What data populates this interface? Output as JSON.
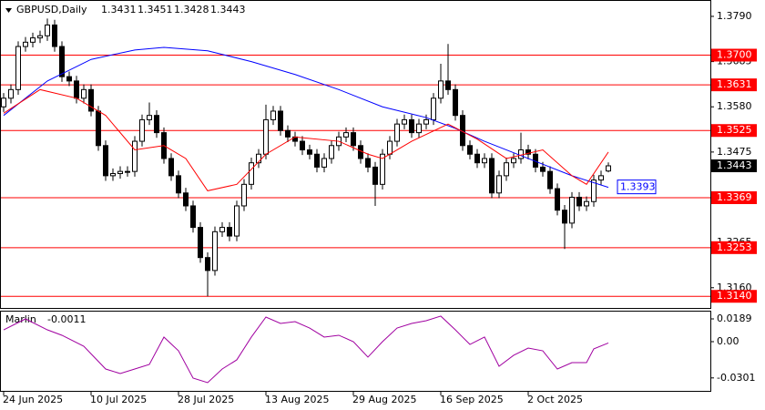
{
  "chart_data": [
    {
      "type": "candlestick",
      "title": "GBPUSD,Daily",
      "categories": [
        "24 Jun 2025",
        null,
        null,
        null,
        null,
        null,
        null,
        null,
        null,
        null,
        null,
        null,
        "10 Jul 2025",
        null,
        null,
        null,
        null,
        null,
        null,
        null,
        null,
        null,
        null,
        null,
        "28 Jul 2025",
        null,
        null,
        null,
        null,
        null,
        null,
        null,
        null,
        null,
        null,
        null,
        "13 Aug 2025",
        null,
        null,
        null,
        null,
        null,
        null,
        null,
        null,
        null,
        null,
        null,
        "29 Aug 2025",
        null,
        null,
        null,
        null,
        null,
        null,
        null,
        null,
        null,
        null,
        null,
        "16 Sep 2025",
        null,
        null,
        null,
        null,
        null,
        null,
        null,
        null,
        null,
        null,
        null,
        "2 Oct 2025",
        null,
        null,
        null,
        null,
        null,
        null,
        null,
        null,
        null,
        null,
        null
      ],
      "open": [
        1.358,
        1.36,
        1.362,
        1.372,
        1.373,
        1.374,
        1.3745,
        1.377,
        1.372,
        1.365,
        1.364,
        1.36,
        1.362,
        1.357,
        1.349,
        1.342,
        1.3425,
        1.343,
        1.343,
        1.35,
        1.355,
        1.356,
        1.352,
        1.346,
        1.342,
        1.338,
        1.335,
        1.33,
        1.323,
        1.32,
        1.329,
        1.33,
        1.328,
        1.335,
        1.34,
        1.345,
        1.347,
        1.355,
        1.357,
        1.3525,
        1.351,
        1.35,
        1.348,
        1.347,
        1.344,
        1.346,
        1.349,
        1.351,
        1.352,
        1.349,
        1.346,
        1.344,
        1.34,
        1.347,
        1.35,
        1.354,
        1.355,
        1.352,
        1.354,
        1.355,
        1.36,
        1.364,
        1.362,
        1.356,
        1.349,
        1.347,
        1.345,
        1.346,
        1.338,
        1.342,
        1.345,
        1.346,
        1.348,
        1.347,
        1.344,
        1.343,
        1.339,
        1.334,
        1.331,
        1.337,
        1.335,
        1.336,
        1.341,
        1.3431
      ],
      "high": [
        1.3612,
        1.3632,
        1.3732,
        1.3742,
        1.3752,
        1.3757,
        1.3785,
        1.3782,
        1.3732,
        1.3662,
        1.3652,
        1.3632,
        1.3632,
        1.3582,
        1.3502,
        1.3437,
        1.3442,
        1.3442,
        1.3512,
        1.3562,
        1.359,
        1.3572,
        1.3532,
        1.3472,
        1.3432,
        1.3392,
        1.3362,
        1.3312,
        1.3242,
        1.3302,
        1.3312,
        1.3312,
        1.3362,
        1.3412,
        1.3462,
        1.3482,
        1.3585,
        1.3582,
        1.3582,
        1.3537,
        1.3522,
        1.3512,
        1.3492,
        1.3482,
        1.3472,
        1.3502,
        1.3522,
        1.3532,
        1.3532,
        1.3502,
        1.3472,
        1.3452,
        1.3482,
        1.3512,
        1.3552,
        1.3562,
        1.3562,
        1.3552,
        1.3562,
        1.3612,
        1.368,
        1.3726,
        1.3632,
        1.3572,
        1.3502,
        1.3482,
        1.3472,
        1.3472,
        1.3432,
        1.3462,
        1.3472,
        1.352,
        1.3492,
        1.3482,
        1.3452,
        1.3442,
        1.3402,
        1.3352,
        1.3382,
        1.3382,
        1.3372,
        1.3422,
        1.3432,
        1.3451
      ],
      "low": [
        1.3568,
        1.3588,
        1.3608,
        1.3708,
        1.3718,
        1.3728,
        1.3733,
        1.3708,
        1.3638,
        1.3628,
        1.3588,
        1.3588,
        1.3558,
        1.3478,
        1.3408,
        1.3408,
        1.3413,
        1.3418,
        1.3418,
        1.3488,
        1.3538,
        1.3508,
        1.3448,
        1.3408,
        1.3368,
        1.3338,
        1.3288,
        1.3218,
        1.314,
        1.3188,
        1.3278,
        1.3268,
        1.3268,
        1.3338,
        1.3388,
        1.3438,
        1.3458,
        1.3538,
        1.3513,
        1.3498,
        1.3488,
        1.3468,
        1.3458,
        1.3428,
        1.3428,
        1.3448,
        1.3478,
        1.3498,
        1.3478,
        1.3448,
        1.3428,
        1.335,
        1.3388,
        1.3458,
        1.3488,
        1.3528,
        1.3508,
        1.3508,
        1.3528,
        1.3538,
        1.3588,
        1.3608,
        1.3548,
        1.3478,
        1.3458,
        1.3438,
        1.3438,
        1.3368,
        1.3368,
        1.3408,
        1.3438,
        1.3448,
        1.3458,
        1.3428,
        1.3418,
        1.3378,
        1.3328,
        1.325,
        1.3298,
        1.3338,
        1.3338,
        1.3348,
        1.3398,
        1.3428
      ],
      "close": [
        1.36,
        1.362,
        1.372,
        1.373,
        1.374,
        1.3745,
        1.377,
        1.372,
        1.365,
        1.364,
        1.36,
        1.362,
        1.357,
        1.349,
        1.342,
        1.3425,
        1.343,
        1.343,
        1.35,
        1.355,
        1.356,
        1.352,
        1.346,
        1.342,
        1.338,
        1.335,
        1.33,
        1.323,
        1.32,
        1.329,
        1.33,
        1.328,
        1.335,
        1.34,
        1.345,
        1.347,
        1.355,
        1.357,
        1.3525,
        1.351,
        1.35,
        1.348,
        1.347,
        1.344,
        1.346,
        1.349,
        1.351,
        1.352,
        1.349,
        1.346,
        1.344,
        1.34,
        1.347,
        1.35,
        1.354,
        1.355,
        1.352,
        1.354,
        1.355,
        1.36,
        1.364,
        1.362,
        1.356,
        1.349,
        1.347,
        1.345,
        1.346,
        1.338,
        1.342,
        1.345,
        1.346,
        1.348,
        1.347,
        1.344,
        1.343,
        1.339,
        1.334,
        1.331,
        1.337,
        1.335,
        1.336,
        1.341,
        1.342,
        1.3443
      ],
      "up_color": "#ffffff",
      "down_color": "#000000",
      "ylim": [
        1.3113,
        1.3828
      ],
      "yticks": [
        {
          "value": 1.379,
          "label": "1.3790"
        },
        1.3685,
        {
          "value": 1.358,
          "label": "1.3580"
        },
        1.3475,
        1.3265,
        {
          "value": 1.316,
          "label": "1.3160"
        }
      ],
      "levels": [
        {
          "value": 1.37,
          "label": "1.3700"
        },
        1.3631,
        1.3525,
        1.3369,
        1.3253,
        {
          "value": 1.314,
          "label": "1.3140"
        }
      ],
      "level_color": "#ff0000",
      "series": [
        {
          "color": "#0000ff",
          "x": [
            0,
            6,
            12,
            18,
            22,
            28,
            34,
            40,
            46,
            52,
            58,
            62,
            66,
            72,
            78,
            83
          ],
          "values": [
            1.356,
            1.364,
            1.369,
            1.3712,
            1.3718,
            1.371,
            1.3685,
            1.3655,
            1.362,
            1.358,
            1.3555,
            1.353,
            1.35,
            1.346,
            1.342,
            1.3393
          ]
        },
        {
          "color": "#ff0000",
          "x": [
            0,
            5,
            10,
            14,
            18,
            22,
            25,
            28,
            32,
            36,
            40,
            46,
            50,
            52,
            56,
            61,
            65,
            69,
            74,
            78,
            80,
            83
          ],
          "values": [
            1.3565,
            1.362,
            1.36,
            1.356,
            1.348,
            1.349,
            1.346,
            1.3385,
            1.34,
            1.347,
            1.351,
            1.35,
            1.347,
            1.346,
            1.35,
            1.354,
            1.3505,
            1.346,
            1.348,
            1.342,
            1.34,
            1.3475
          ]
        }
      ]
    },
    {
      "type": "line",
      "title": "Marlin",
      "color": "#a000a0",
      "x": [
        0,
        3,
        6,
        8,
        11,
        14,
        16,
        18,
        20,
        22,
        24,
        26,
        28,
        30,
        32,
        34,
        36,
        38,
        40,
        42,
        44,
        46,
        48,
        50,
        52,
        54,
        56,
        58,
        60,
        62,
        64,
        66,
        68,
        70,
        72,
        74,
        76,
        78,
        80,
        81,
        83
      ],
      "values": [
        0.0098,
        0.0189,
        0.0098,
        0.0053,
        -0.0038,
        -0.0227,
        -0.0265,
        -0.0227,
        -0.0189,
        0.0038,
        -0.0076,
        -0.0302,
        -0.034,
        -0.0227,
        -0.0151,
        0.0038,
        0.0204,
        0.0151,
        0.0166,
        0.0113,
        0.0038,
        0.0053,
        0,
        -0.0128,
        0,
        0.0113,
        0.0151,
        0.0174,
        0.0212,
        0.0098,
        -0.0023,
        0.0038,
        -0.0204,
        -0.0113,
        -0.0053,
        -0.0076,
        -0.0227,
        -0.0174,
        -0.0174,
        -0.006,
        -0.0011
      ],
      "ylim": [
        -0.0416,
        0.0257
      ],
      "yticks": [
        0.0189,
        {
          "value": 0,
          "label": "0.00"
        },
        -0.0301
      ]
    }
  ]
}
